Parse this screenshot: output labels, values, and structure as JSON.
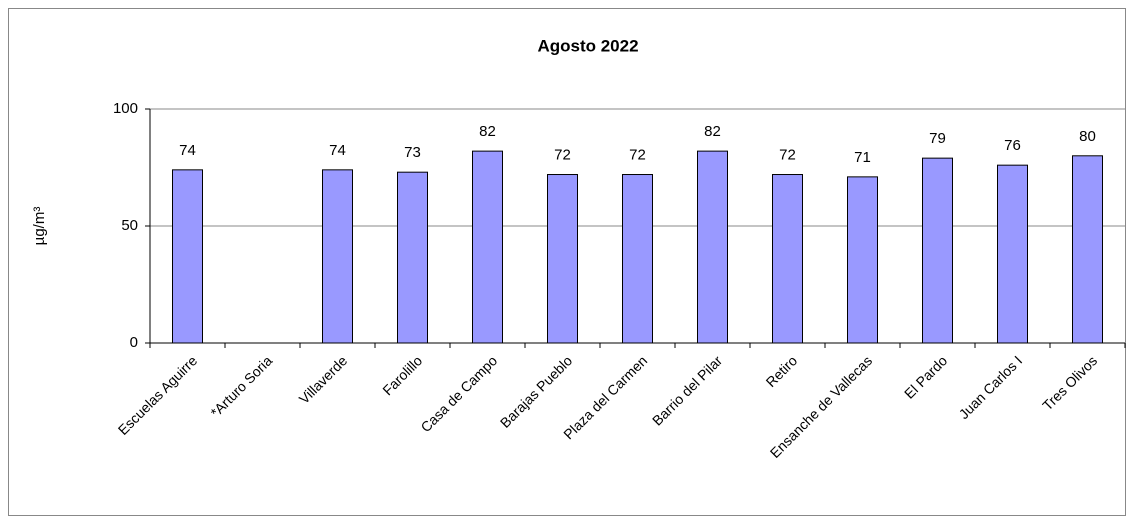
{
  "chart_data": {
    "type": "bar",
    "title": "Agosto 2022",
    "y_label": "µg/m³",
    "categories": [
      "Escuelas Aguirre",
      "*Arturo Soria",
      "Villaverde",
      "Farolillo",
      "Casa de Campo",
      "Barajas Pueblo",
      "Plaza del Carmen",
      "Barrio del Pilar",
      "Retiro",
      "Ensanche de Vallecas",
      "El Pardo",
      "Juan Carlos I",
      "Tres Olivos"
    ],
    "values": [
      74,
      null,
      74,
      73,
      82,
      72,
      72,
      82,
      72,
      71,
      79,
      76,
      80
    ],
    "color": "#9999ff",
    "ylim": [
      0,
      100
    ],
    "yticks": [
      0,
      50,
      100
    ],
    "grid": true
  }
}
